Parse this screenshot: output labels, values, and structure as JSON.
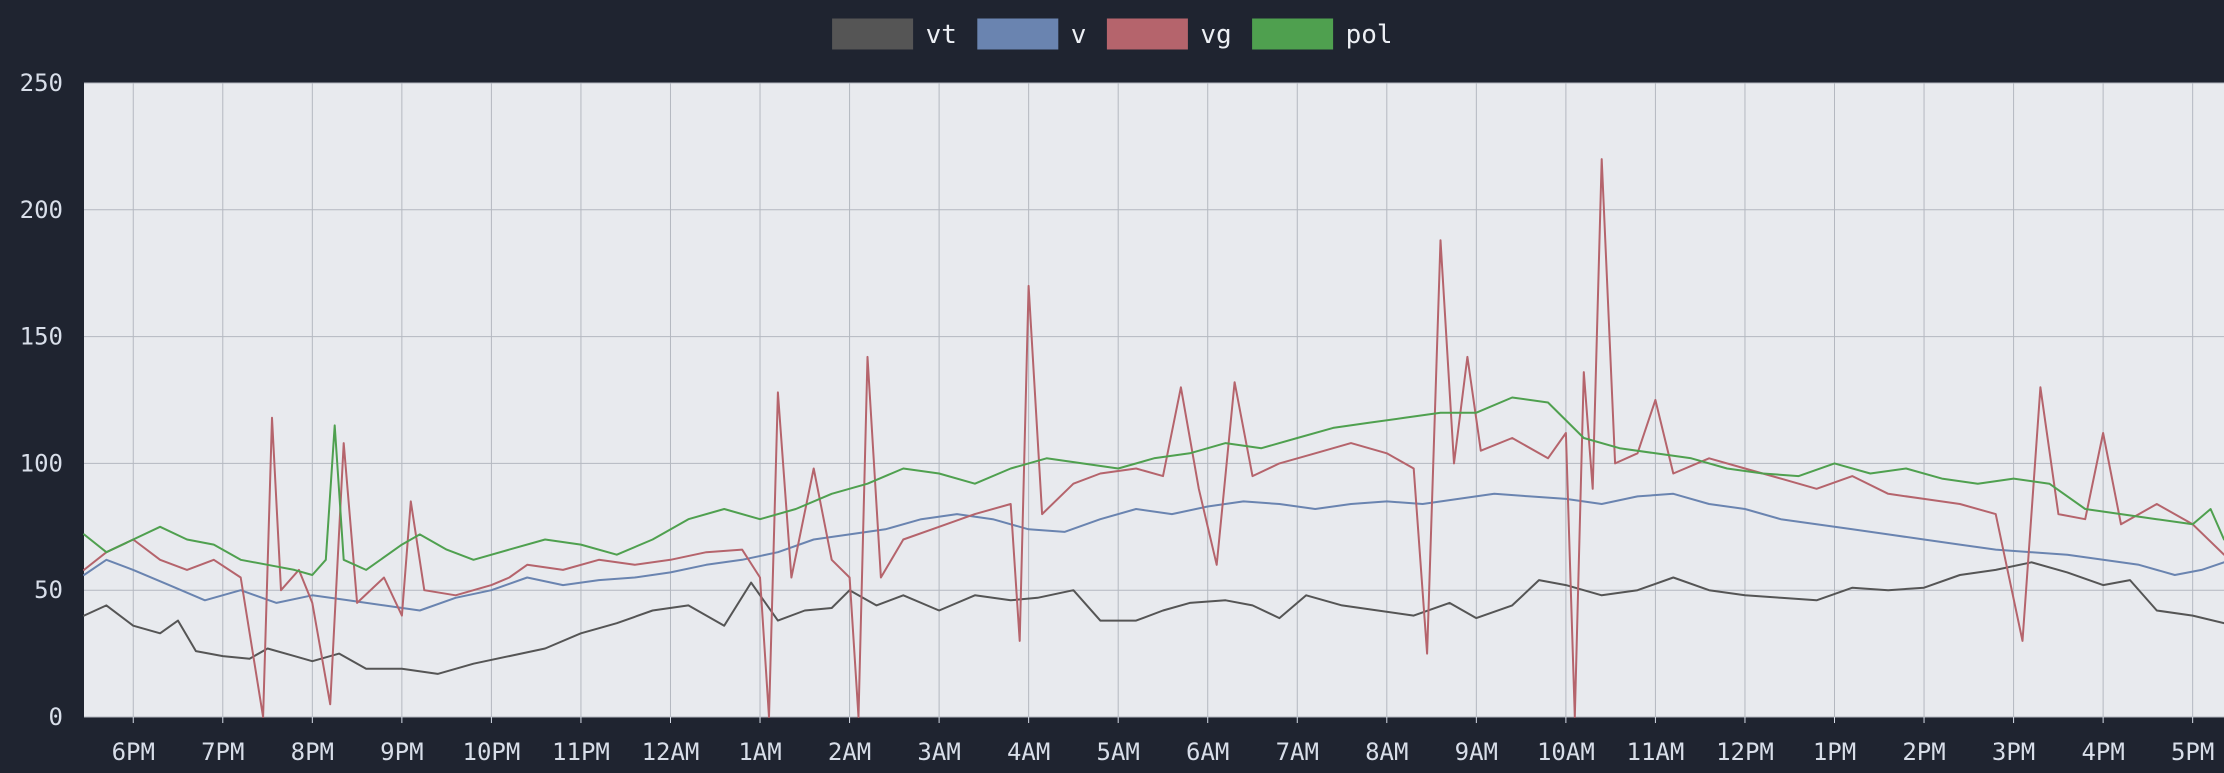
{
  "chart_data": {
    "type": "line",
    "title": "",
    "xlabel": "",
    "ylabel": "",
    "ylim": [
      0,
      250
    ],
    "yticks": [
      0,
      50,
      100,
      150,
      200,
      250
    ],
    "x_tick_labels": [
      "6PM",
      "7PM",
      "8PM",
      "9PM",
      "10PM",
      "11PM",
      "12AM",
      "1AM",
      "2AM",
      "3AM",
      "4AM",
      "5AM",
      "6AM",
      "7AM",
      "8AM",
      "9AM",
      "10AM",
      "11AM",
      "12PM",
      "1PM",
      "2PM",
      "3PM",
      "4PM",
      "5PM"
    ],
    "x_range_hours": [
      -0.55,
      23.35
    ],
    "grid": true,
    "legend_position": "top-center",
    "series": [
      {
        "name": "vt",
        "color": "#555555",
        "points": [
          [
            -0.55,
            40
          ],
          [
            -0.3,
            44
          ],
          [
            0,
            36
          ],
          [
            0.3,
            33
          ],
          [
            0.5,
            38
          ],
          [
            0.7,
            26
          ],
          [
            1.0,
            24
          ],
          [
            1.3,
            23
          ],
          [
            1.5,
            27
          ],
          [
            1.8,
            24
          ],
          [
            2.0,
            22
          ],
          [
            2.3,
            25
          ],
          [
            2.6,
            19
          ],
          [
            3.0,
            19
          ],
          [
            3.4,
            17
          ],
          [
            3.8,
            21
          ],
          [
            4.2,
            24
          ],
          [
            4.6,
            27
          ],
          [
            5.0,
            33
          ],
          [
            5.4,
            37
          ],
          [
            5.8,
            42
          ],
          [
            6.2,
            44
          ],
          [
            6.6,
            36
          ],
          [
            6.9,
            53
          ],
          [
            7.2,
            38
          ],
          [
            7.5,
            42
          ],
          [
            7.8,
            43
          ],
          [
            8.0,
            50
          ],
          [
            8.3,
            44
          ],
          [
            8.6,
            48
          ],
          [
            9.0,
            42
          ],
          [
            9.4,
            48
          ],
          [
            9.8,
            46
          ],
          [
            10.1,
            47
          ],
          [
            10.5,
            50
          ],
          [
            10.8,
            38
          ],
          [
            11.2,
            38
          ],
          [
            11.5,
            42
          ],
          [
            11.8,
            45
          ],
          [
            12.2,
            46
          ],
          [
            12.5,
            44
          ],
          [
            12.8,
            39
          ],
          [
            13.1,
            48
          ],
          [
            13.5,
            44
          ],
          [
            13.9,
            42
          ],
          [
            14.3,
            40
          ],
          [
            14.7,
            45
          ],
          [
            15.0,
            39
          ],
          [
            15.4,
            44
          ],
          [
            15.7,
            54
          ],
          [
            16.0,
            52
          ],
          [
            16.4,
            48
          ],
          [
            16.8,
            50
          ],
          [
            17.2,
            55
          ],
          [
            17.6,
            50
          ],
          [
            18.0,
            48
          ],
          [
            18.4,
            47
          ],
          [
            18.8,
            46
          ],
          [
            19.2,
            51
          ],
          [
            19.6,
            50
          ],
          [
            20.0,
            51
          ],
          [
            20.4,
            56
          ],
          [
            20.8,
            58
          ],
          [
            21.2,
            61
          ],
          [
            21.6,
            57
          ],
          [
            22.0,
            52
          ],
          [
            22.3,
            54
          ],
          [
            22.6,
            42
          ],
          [
            23.0,
            40
          ],
          [
            23.35,
            37
          ]
        ]
      },
      {
        "name": "v",
        "color": "#6a84b0",
        "points": [
          [
            -0.55,
            56
          ],
          [
            -0.3,
            62
          ],
          [
            0,
            58
          ],
          [
            0.4,
            52
          ],
          [
            0.8,
            46
          ],
          [
            1.2,
            50
          ],
          [
            1.6,
            45
          ],
          [
            2.0,
            48
          ],
          [
            2.4,
            46
          ],
          [
            2.8,
            44
          ],
          [
            3.2,
            42
          ],
          [
            3.6,
            47
          ],
          [
            4.0,
            50
          ],
          [
            4.4,
            55
          ],
          [
            4.8,
            52
          ],
          [
            5.2,
            54
          ],
          [
            5.6,
            55
          ],
          [
            6.0,
            57
          ],
          [
            6.4,
            60
          ],
          [
            6.8,
            62
          ],
          [
            7.2,
            65
          ],
          [
            7.6,
            70
          ],
          [
            8.0,
            72
          ],
          [
            8.4,
            74
          ],
          [
            8.8,
            78
          ],
          [
            9.2,
            80
          ],
          [
            9.6,
            78
          ],
          [
            10.0,
            74
          ],
          [
            10.4,
            73
          ],
          [
            10.8,
            78
          ],
          [
            11.2,
            82
          ],
          [
            11.6,
            80
          ],
          [
            12.0,
            83
          ],
          [
            12.4,
            85
          ],
          [
            12.8,
            84
          ],
          [
            13.2,
            82
          ],
          [
            13.6,
            84
          ],
          [
            14.0,
            85
          ],
          [
            14.4,
            84
          ],
          [
            14.8,
            86
          ],
          [
            15.2,
            88
          ],
          [
            15.6,
            87
          ],
          [
            16.0,
            86
          ],
          [
            16.4,
            84
          ],
          [
            16.8,
            87
          ],
          [
            17.2,
            88
          ],
          [
            17.6,
            84
          ],
          [
            18.0,
            82
          ],
          [
            18.4,
            78
          ],
          [
            18.8,
            76
          ],
          [
            19.2,
            74
          ],
          [
            19.6,
            72
          ],
          [
            20.0,
            70
          ],
          [
            20.4,
            68
          ],
          [
            20.8,
            66
          ],
          [
            21.2,
            65
          ],
          [
            21.6,
            64
          ],
          [
            22.0,
            62
          ],
          [
            22.4,
            60
          ],
          [
            22.8,
            56
          ],
          [
            23.1,
            58
          ],
          [
            23.35,
            61
          ]
        ]
      },
      {
        "name": "vg",
        "color": "#b5646c",
        "points": [
          [
            -0.55,
            58
          ],
          [
            -0.3,
            65
          ],
          [
            0,
            70
          ],
          [
            0.3,
            62
          ],
          [
            0.6,
            58
          ],
          [
            0.9,
            62
          ],
          [
            1.2,
            55
          ],
          [
            1.45,
            0
          ],
          [
            1.55,
            118
          ],
          [
            1.65,
            50
          ],
          [
            1.85,
            58
          ],
          [
            2.0,
            45
          ],
          [
            2.2,
            5
          ],
          [
            2.35,
            108
          ],
          [
            2.5,
            45
          ],
          [
            2.8,
            55
          ],
          [
            3.0,
            40
          ],
          [
            3.1,
            85
          ],
          [
            3.25,
            50
          ],
          [
            3.6,
            48
          ],
          [
            4.0,
            52
          ],
          [
            4.2,
            55
          ],
          [
            4.4,
            60
          ],
          [
            4.8,
            58
          ],
          [
            5.2,
            62
          ],
          [
            5.6,
            60
          ],
          [
            6.0,
            62
          ],
          [
            6.4,
            65
          ],
          [
            6.8,
            66
          ],
          [
            7.0,
            55
          ],
          [
            7.1,
            0
          ],
          [
            7.2,
            128
          ],
          [
            7.35,
            55
          ],
          [
            7.6,
            98
          ],
          [
            7.8,
            62
          ],
          [
            8.0,
            55
          ],
          [
            8.1,
            0
          ],
          [
            8.2,
            142
          ],
          [
            8.35,
            55
          ],
          [
            8.6,
            70
          ],
          [
            9.0,
            75
          ],
          [
            9.4,
            80
          ],
          [
            9.8,
            84
          ],
          [
            9.9,
            30
          ],
          [
            10.0,
            170
          ],
          [
            10.15,
            80
          ],
          [
            10.5,
            92
          ],
          [
            10.8,
            96
          ],
          [
            11.2,
            98
          ],
          [
            11.5,
            95
          ],
          [
            11.7,
            130
          ],
          [
            11.9,
            90
          ],
          [
            12.1,
            60
          ],
          [
            12.3,
            132
          ],
          [
            12.5,
            95
          ],
          [
            12.8,
            100
          ],
          [
            13.2,
            104
          ],
          [
            13.6,
            108
          ],
          [
            14.0,
            104
          ],
          [
            14.3,
            98
          ],
          [
            14.45,
            25
          ],
          [
            14.6,
            188
          ],
          [
            14.75,
            100
          ],
          [
            14.9,
            142
          ],
          [
            15.05,
            105
          ],
          [
            15.4,
            110
          ],
          [
            15.8,
            102
          ],
          [
            16.0,
            112
          ],
          [
            16.1,
            0
          ],
          [
            16.2,
            136
          ],
          [
            16.3,
            90
          ],
          [
            16.4,
            220
          ],
          [
            16.55,
            100
          ],
          [
            16.8,
            104
          ],
          [
            17.0,
            125
          ],
          [
            17.2,
            96
          ],
          [
            17.6,
            102
          ],
          [
            18.0,
            98
          ],
          [
            18.4,
            94
          ],
          [
            18.8,
            90
          ],
          [
            19.2,
            95
          ],
          [
            19.6,
            88
          ],
          [
            20.0,
            86
          ],
          [
            20.4,
            84
          ],
          [
            20.8,
            80
          ],
          [
            21.1,
            30
          ],
          [
            21.3,
            130
          ],
          [
            21.5,
            80
          ],
          [
            21.8,
            78
          ],
          [
            22.0,
            112
          ],
          [
            22.2,
            76
          ],
          [
            22.6,
            84
          ],
          [
            23.0,
            76
          ],
          [
            23.35,
            64
          ]
        ]
      },
      {
        "name": "pol",
        "color": "#4fa04f",
        "points": [
          [
            -0.55,
            72
          ],
          [
            -0.3,
            65
          ],
          [
            0,
            70
          ],
          [
            0.3,
            75
          ],
          [
            0.6,
            70
          ],
          [
            0.9,
            68
          ],
          [
            1.2,
            62
          ],
          [
            1.5,
            60
          ],
          [
            1.8,
            58
          ],
          [
            2.0,
            56
          ],
          [
            2.15,
            62
          ],
          [
            2.25,
            115
          ],
          [
            2.35,
            62
          ],
          [
            2.6,
            58
          ],
          [
            3.0,
            68
          ],
          [
            3.2,
            72
          ],
          [
            3.5,
            66
          ],
          [
            3.8,
            62
          ],
          [
            4.2,
            66
          ],
          [
            4.6,
            70
          ],
          [
            5.0,
            68
          ],
          [
            5.4,
            64
          ],
          [
            5.8,
            70
          ],
          [
            6.2,
            78
          ],
          [
            6.6,
            82
          ],
          [
            7.0,
            78
          ],
          [
            7.4,
            82
          ],
          [
            7.8,
            88
          ],
          [
            8.2,
            92
          ],
          [
            8.6,
            98
          ],
          [
            9.0,
            96
          ],
          [
            9.4,
            92
          ],
          [
            9.8,
            98
          ],
          [
            10.2,
            102
          ],
          [
            10.6,
            100
          ],
          [
            11.0,
            98
          ],
          [
            11.4,
            102
          ],
          [
            11.8,
            104
          ],
          [
            12.2,
            108
          ],
          [
            12.6,
            106
          ],
          [
            13.0,
            110
          ],
          [
            13.4,
            114
          ],
          [
            13.8,
            116
          ],
          [
            14.2,
            118
          ],
          [
            14.6,
            120
          ],
          [
            15.0,
            120
          ],
          [
            15.4,
            126
          ],
          [
            15.8,
            124
          ],
          [
            16.2,
            110
          ],
          [
            16.6,
            106
          ],
          [
            17.0,
            104
          ],
          [
            17.4,
            102
          ],
          [
            17.8,
            98
          ],
          [
            18.2,
            96
          ],
          [
            18.6,
            95
          ],
          [
            19.0,
            100
          ],
          [
            19.4,
            96
          ],
          [
            19.8,
            98
          ],
          [
            20.2,
            94
          ],
          [
            20.6,
            92
          ],
          [
            21.0,
            94
          ],
          [
            21.4,
            92
          ],
          [
            21.8,
            82
          ],
          [
            22.2,
            80
          ],
          [
            22.6,
            78
          ],
          [
            23.0,
            76
          ],
          [
            23.2,
            82
          ],
          [
            23.35,
            70
          ]
        ]
      }
    ]
  }
}
